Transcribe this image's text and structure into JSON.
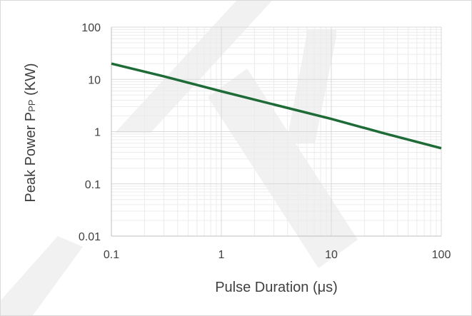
{
  "chart_data": {
    "type": "line",
    "title": "",
    "xlabel": "Pulse Duration (μs)",
    "ylabel": "Peak Power P",
    "ylabel_subscript": "PP",
    "ylabel_suffix": " (KW)",
    "x_scale": "log",
    "y_scale": "log",
    "xlim": [
      0.1,
      100
    ],
    "ylim": [
      0.01,
      100
    ],
    "x_ticks": [
      0.1,
      1,
      10,
      100
    ],
    "x_tick_labels": [
      "0.1",
      "1",
      "10",
      "100"
    ],
    "y_ticks": [
      0.01,
      0.1,
      1,
      10,
      100
    ],
    "y_tick_labels": [
      "0.01",
      "0.1",
      "1",
      "10",
      "100"
    ],
    "grid": true,
    "minor_grid": true,
    "legend": "none",
    "series": [
      {
        "color": "#1e6b37",
        "x": [
          0.1,
          0.3,
          1,
          3,
          10,
          30,
          100
        ],
        "y": [
          20,
          11.4,
          5.9,
          3.3,
          1.75,
          0.93,
          0.48
        ]
      }
    ]
  },
  "colors": {
    "axis": "#bfbfbf",
    "major_grid": "#d9d9d9",
    "minor_grid": "#ececec",
    "text": "#404040",
    "watermark": "#e6e6e6"
  }
}
